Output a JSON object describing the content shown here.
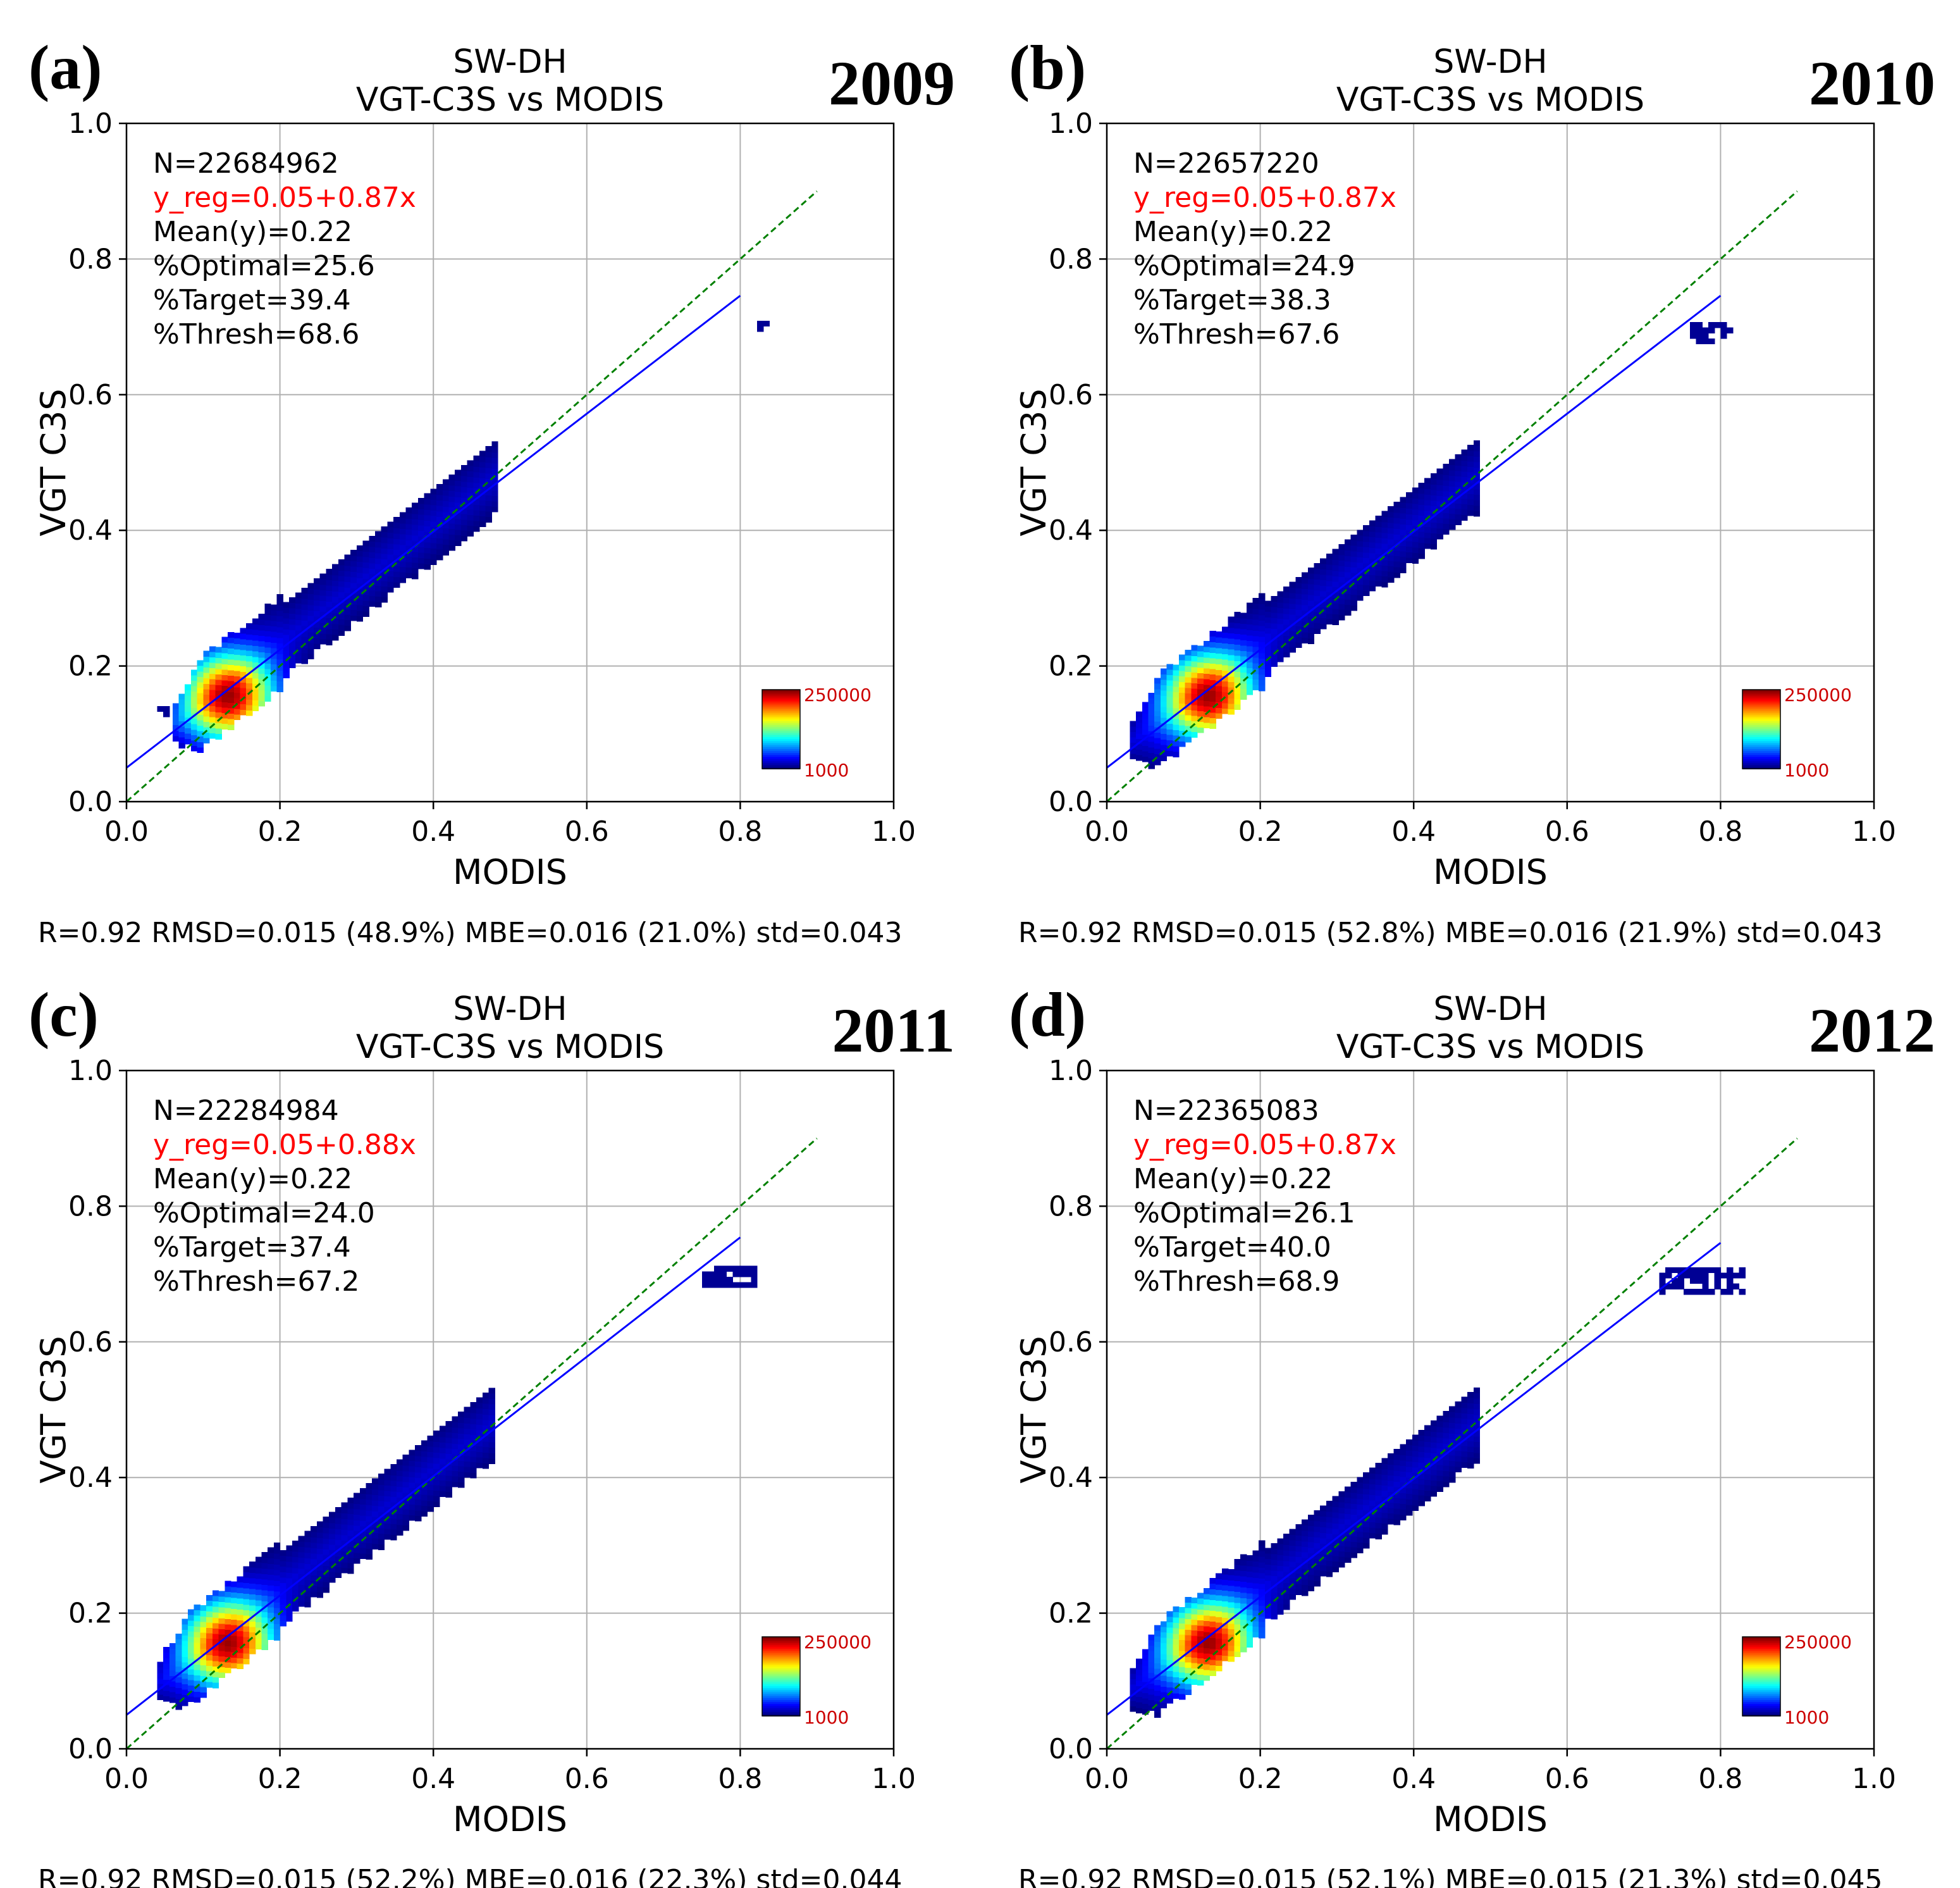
{
  "colors": {
    "grid": "#b0b0b0",
    "regression_line": "#0000ff",
    "one_to_one_line": "#008000",
    "regression_text": "#ff0000",
    "colorbar_label": "#cc0000",
    "axis": "#000000"
  },
  "colormap": "jet",
  "chart_data": [
    {
      "type": "heatmap",
      "panel_label": "(a)",
      "year": "2009",
      "title": [
        "SW-DH",
        "VGT-C3S vs MODIS"
      ],
      "xlabel": "MODIS",
      "ylabel": "VGT C3S",
      "xlim": [
        0,
        1
      ],
      "ylim": [
        0,
        1
      ],
      "xticks": [
        "0.0",
        "0.2",
        "0.4",
        "0.6",
        "0.8",
        "1.0"
      ],
      "yticks": [
        "0.0",
        "0.2",
        "0.4",
        "0.6",
        "0.8",
        "1.0"
      ],
      "grid": true,
      "stats_lines": [
        "N=22684962",
        "y_reg=0.05+0.87x",
        "Mean(y)=0.22",
        "%Optimal=25.6",
        "%Target=39.4",
        "%Thresh=68.6"
      ],
      "regression": {
        "intercept": 0.05,
        "slope": 0.87,
        "x_range": [
          0,
          0.8
        ]
      },
      "one_to_one": {
        "x_range": [
          0,
          0.9
        ]
      },
      "colorbar": {
        "min_label": "1000",
        "max_label": "250000",
        "placement": "bottom-right"
      },
      "density": {
        "peak": [
          0.13,
          0.15
        ],
        "core_halfwidth": 0.045,
        "band_x": [
          0.06,
          0.48
        ],
        "band_halfwidth": 0.055,
        "outliers": [
          {
            "x": [
              0.822,
              0.832
            ],
            "y": [
              0.693,
              0.705
            ]
          },
          {
            "x": [
              0.04,
              0.048
            ],
            "y": [
              0.125,
              0.14
            ]
          }
        ]
      },
      "footer": "R=0.92   RMSD=0.015 (48.9%)   MBE=0.016 (21.0%)   std=0.043"
    },
    {
      "type": "heatmap",
      "panel_label": "(b)",
      "year": "2010",
      "title": [
        "SW-DH",
        "VGT-C3S vs MODIS"
      ],
      "xlabel": "MODIS",
      "ylabel": "VGT C3S",
      "xlim": [
        0,
        1
      ],
      "ylim": [
        0,
        1
      ],
      "xticks": [
        "0.0",
        "0.2",
        "0.4",
        "0.6",
        "0.8",
        "1.0"
      ],
      "yticks": [
        "0.0",
        "0.2",
        "0.4",
        "0.6",
        "0.8",
        "1.0"
      ],
      "grid": true,
      "stats_lines": [
        "N=22657220",
        "y_reg=0.05+0.87x",
        "Mean(y)=0.22",
        "%Optimal=24.9",
        "%Target=38.3",
        "%Thresh=67.6"
      ],
      "regression": {
        "intercept": 0.05,
        "slope": 0.87,
        "x_range": [
          0,
          0.8
        ]
      },
      "one_to_one": {
        "x_range": [
          0,
          0.9
        ]
      },
      "colorbar": {
        "min_label": "1000",
        "max_label": "250000",
        "placement": "bottom-right"
      },
      "density": {
        "peak": [
          0.13,
          0.15
        ],
        "core_halfwidth": 0.045,
        "band_x": [
          0.03,
          0.48
        ],
        "band_halfwidth": 0.055,
        "outliers": [
          {
            "x": [
              0.76,
              0.815
            ],
            "y": [
              0.675,
              0.705
            ]
          }
        ]
      },
      "footer": "R=0.92   RMSD=0.015 (52.8%)   MBE=0.016 (21.9%)   std=0.043"
    },
    {
      "type": "heatmap",
      "panel_label": "(c)",
      "year": "2011",
      "title": [
        "SW-DH",
        "VGT-C3S vs MODIS"
      ],
      "xlabel": "MODIS",
      "ylabel": "VGT C3S",
      "xlim": [
        0,
        1
      ],
      "ylim": [
        0,
        1
      ],
      "xticks": [
        "0.0",
        "0.2",
        "0.4",
        "0.6",
        "0.8",
        "1.0"
      ],
      "yticks": [
        "0.0",
        "0.2",
        "0.4",
        "0.6",
        "0.8",
        "1.0"
      ],
      "grid": true,
      "stats_lines": [
        "N=22284984",
        "y_reg=0.05+0.88x",
        "Mean(y)=0.22",
        "%Optimal=24.0",
        "%Target=37.4",
        "%Thresh=67.2"
      ],
      "regression": {
        "intercept": 0.05,
        "slope": 0.88,
        "x_range": [
          0,
          0.8
        ]
      },
      "one_to_one": {
        "x_range": [
          0,
          0.9
        ]
      },
      "colorbar": {
        "min_label": "1000",
        "max_label": "250000",
        "placement": "bottom-right"
      },
      "density": {
        "peak": [
          0.13,
          0.15
        ],
        "core_halfwidth": 0.045,
        "band_x": [
          0.04,
          0.48
        ],
        "band_halfwidth": 0.055,
        "outliers": [
          {
            "x": [
              0.75,
              0.82
            ],
            "y": [
              0.68,
              0.705
            ]
          }
        ]
      },
      "footer": "R=0.92   RMSD=0.015 (52.2%)   MBE=0.016 (22.3%)   std=0.044"
    },
    {
      "type": "heatmap",
      "panel_label": "(d)",
      "year": "2012",
      "title": [
        "SW-DH",
        "VGT-C3S vs MODIS"
      ],
      "xlabel": "MODIS",
      "ylabel": "VGT C3S",
      "xlim": [
        0,
        1
      ],
      "ylim": [
        0,
        1
      ],
      "xticks": [
        "0.0",
        "0.2",
        "0.4",
        "0.6",
        "0.8",
        "1.0"
      ],
      "yticks": [
        "0.0",
        "0.2",
        "0.4",
        "0.6",
        "0.8",
        "1.0"
      ],
      "grid": true,
      "stats_lines": [
        "N=22365083",
        "y_reg=0.05+0.87x",
        "Mean(y)=0.22",
        "%Optimal=26.1",
        "%Target=40.0",
        "%Thresh=68.9"
      ],
      "regression": {
        "intercept": 0.05,
        "slope": 0.87,
        "x_range": [
          0,
          0.8
        ]
      },
      "one_to_one": {
        "x_range": [
          0,
          0.9
        ]
      },
      "colorbar": {
        "min_label": "1000",
        "max_label": "250000",
        "placement": "bottom-right"
      },
      "density": {
        "peak": [
          0.13,
          0.15
        ],
        "core_halfwidth": 0.045,
        "band_x": [
          0.03,
          0.48
        ],
        "band_halfwidth": 0.055,
        "outliers": [
          {
            "x": [
              0.72,
              0.83
            ],
            "y": [
              0.67,
              0.705
            ]
          }
        ]
      },
      "footer": "R=0.92   RMSD=0.015 (52.1%)   MBE=0.015 (21.3%)   std=0.045"
    }
  ]
}
